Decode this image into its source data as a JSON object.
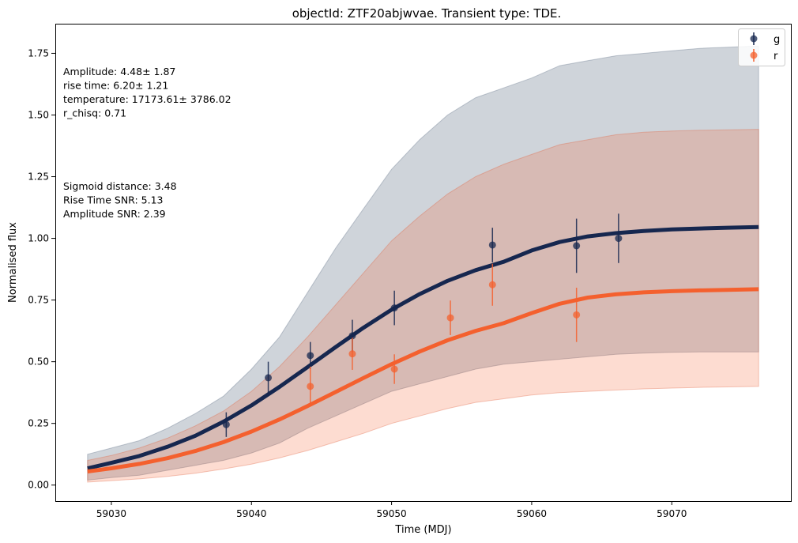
{
  "chart_data": {
    "type": "line",
    "title": "objectId: ZTF20abjwvae. Transient type: TDE.",
    "xlabel": "Time (MDJ)",
    "ylabel": "Normalised flux",
    "xlim": [
      59026,
      59078.5
    ],
    "ylim": [
      -0.065,
      1.87
    ],
    "xticks": [
      59030,
      59040,
      59050,
      59060,
      59070
    ],
    "yticks": [
      0.0,
      0.25,
      0.5,
      0.75,
      1.0,
      1.25,
      1.5,
      1.75
    ],
    "xtick_labels": [
      "59030",
      "59040",
      "59050",
      "59060",
      "59070"
    ],
    "ytick_labels": [
      "0.00",
      "0.25",
      "0.50",
      "0.75",
      "1.00",
      "1.25",
      "1.50",
      "1.75"
    ],
    "grid": false,
    "legend_position": "top-right",
    "colors": {
      "g": "#16274f",
      "r": "#f4602e"
    },
    "annotations": [
      [
        "Amplitude: 4.48± 1.87",
        "rise time: 6.20± 1.21",
        "temperature: 17173.61± 3786.02",
        "r_chisq: 0.71"
      ],
      [
        "Sigmoid distance: 3.48",
        "Rise Time SNR: 5.13",
        "Amplitude SNR: 2.39"
      ]
    ],
    "series": [
      {
        "name": "g",
        "fit_curve": {
          "x": [
            59028.3,
            59030,
            59032,
            59034,
            59036,
            59038,
            59040,
            59042,
            59044,
            59046,
            59048,
            59050,
            59052,
            59054,
            59056,
            59058,
            59060,
            59062,
            59064,
            59066,
            59068,
            59070,
            59072,
            59074,
            59076.2
          ],
          "y": [
            0.068,
            0.09,
            0.118,
            0.155,
            0.2,
            0.257,
            0.323,
            0.398,
            0.478,
            0.559,
            0.638,
            0.711,
            0.774,
            0.828,
            0.871,
            0.905,
            0.951,
            0.985,
            1.008,
            1.021,
            1.03,
            1.036,
            1.04,
            1.043,
            1.046
          ]
        },
        "band_upper": [
          0.125,
          0.15,
          0.18,
          0.23,
          0.29,
          0.36,
          0.47,
          0.6,
          0.78,
          0.96,
          1.12,
          1.28,
          1.4,
          1.5,
          1.57,
          1.61,
          1.65,
          1.7,
          1.72,
          1.74,
          1.75,
          1.76,
          1.77,
          1.775,
          1.78
        ],
        "band_lower": [
          0.02,
          0.03,
          0.04,
          0.06,
          0.08,
          0.1,
          0.13,
          0.17,
          0.23,
          0.28,
          0.33,
          0.38,
          0.41,
          0.44,
          0.47,
          0.49,
          0.5,
          0.51,
          0.52,
          0.53,
          0.535,
          0.538,
          0.54,
          0.54,
          0.54
        ],
        "points": [
          {
            "x": 59038.2,
            "y": 0.245,
            "err": 0.05
          },
          {
            "x": 59041.2,
            "y": 0.435,
            "err": 0.065
          },
          {
            "x": 59044.2,
            "y": 0.525,
            "err": 0.055
          },
          {
            "x": 59047.2,
            "y": 0.605,
            "err": 0.065
          },
          {
            "x": 59050.2,
            "y": 0.718,
            "err": 0.07
          },
          {
            "x": 59057.2,
            "y": 0.973,
            "err": 0.07
          },
          {
            "x": 59063.2,
            "y": 0.97,
            "err": 0.11
          },
          {
            "x": 59066.2,
            "y": 1.0,
            "err": 0.1
          }
        ]
      },
      {
        "name": "r",
        "fit_curve": {
          "x": [
            59028.3,
            59030,
            59032,
            59034,
            59036,
            59038,
            59040,
            59042,
            59044,
            59046,
            59048,
            59050,
            59052,
            59054,
            59056,
            59058,
            59060,
            59062,
            59064,
            59066,
            59068,
            59070,
            59072,
            59074,
            59076.2
          ],
          "y": [
            0.055,
            0.068,
            0.086,
            0.109,
            0.138,
            0.174,
            0.217,
            0.266,
            0.32,
            0.377,
            0.434,
            0.49,
            0.541,
            0.587,
            0.625,
            0.656,
            0.697,
            0.735,
            0.76,
            0.773,
            0.781,
            0.786,
            0.789,
            0.791,
            0.794
          ]
        },
        "band_upper": [
          0.1,
          0.12,
          0.15,
          0.19,
          0.24,
          0.3,
          0.38,
          0.48,
          0.6,
          0.73,
          0.86,
          0.99,
          1.09,
          1.18,
          1.25,
          1.3,
          1.34,
          1.38,
          1.4,
          1.42,
          1.43,
          1.435,
          1.438,
          1.44,
          1.442
        ],
        "band_lower": [
          0.012,
          0.018,
          0.025,
          0.035,
          0.048,
          0.065,
          0.085,
          0.11,
          0.14,
          0.175,
          0.21,
          0.25,
          0.28,
          0.31,
          0.335,
          0.35,
          0.365,
          0.375,
          0.38,
          0.385,
          0.39,
          0.393,
          0.396,
          0.398,
          0.4
        ],
        "points": [
          {
            "x": 59044.2,
            "y": 0.4,
            "err": 0.08
          },
          {
            "x": 59047.2,
            "y": 0.532,
            "err": 0.065
          },
          {
            "x": 59050.2,
            "y": 0.47,
            "err": 0.06
          },
          {
            "x": 59054.2,
            "y": 0.678,
            "err": 0.07
          },
          {
            "x": 59057.2,
            "y": 0.812,
            "err": 0.085
          },
          {
            "x": 59063.2,
            "y": 0.69,
            "err": 0.11
          }
        ]
      }
    ]
  }
}
